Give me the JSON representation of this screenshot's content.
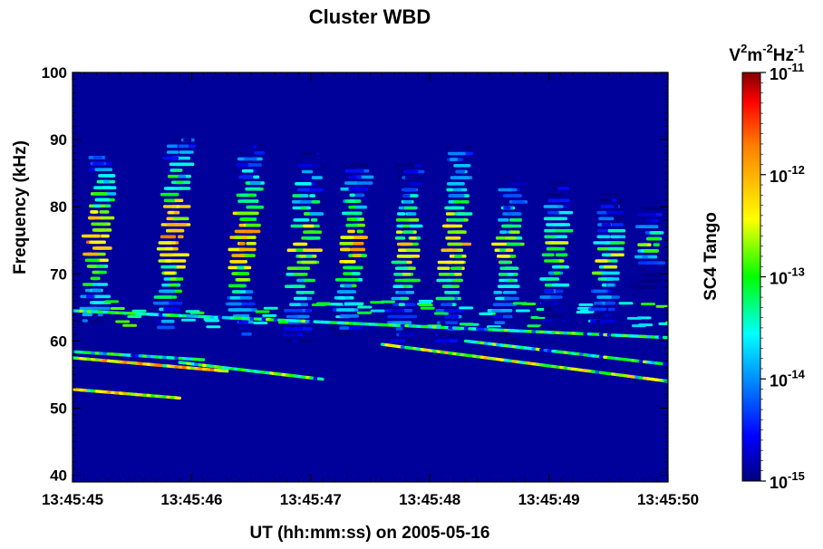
{
  "chart_data": {
    "type": "heatmap",
    "title": "Cluster WBD",
    "xlabel": "UT (hh:mm:ss) on 2005-05-16",
    "ylabel": "Frequency (kHz)",
    "side_label": "SC4 Tango",
    "x_ticks": [
      "13:45:45",
      "13:45:46",
      "13:45:47",
      "13:45:48",
      "13:45:49",
      "13:45:50"
    ],
    "x_range_seconds": [
      45,
      50
    ],
    "y_ticks": [
      40,
      50,
      60,
      70,
      80,
      90,
      100
    ],
    "ylim": [
      39,
      100
    ],
    "colorbar": {
      "unit_base": "V",
      "unit_exp1": "2",
      "unit_mid": "m",
      "unit_exp2": "-2",
      "unit_end": "Hz",
      "unit_exp3": "-1",
      "scale": "log",
      "range_exponents": [
        -15,
        -11
      ],
      "tick_exponents": [
        "-11",
        "-12",
        "-13",
        "-14",
        "-15"
      ],
      "tick_base": "10",
      "colormap": [
        "#00007f",
        "#0000ff",
        "#00ffff",
        "#00ff00",
        "#ffff00",
        "#ff7f00",
        "#ff0000",
        "#7f0000"
      ]
    },
    "background_level_exponent": -15,
    "emissions": [
      {
        "t_center": 45.22,
        "f_low": 63,
        "f_high": 88,
        "log_level": -11.4
      },
      {
        "t_center": 45.85,
        "f_low": 62,
        "f_high": 90,
        "log_level": -11.3
      },
      {
        "t_center": 46.45,
        "f_low": 61,
        "f_high": 89,
        "log_level": -11.5
      },
      {
        "t_center": 46.95,
        "f_low": 60,
        "f_high": 88,
        "log_level": -11.8
      },
      {
        "t_center": 47.35,
        "f_low": 61,
        "f_high": 87,
        "log_level": -11.7
      },
      {
        "t_center": 47.8,
        "f_low": 60,
        "f_high": 87,
        "log_level": -11.8
      },
      {
        "t_center": 48.2,
        "f_low": 60,
        "f_high": 89,
        "log_level": -11.6
      },
      {
        "t_center": 48.65,
        "f_low": 60,
        "f_high": 85,
        "log_level": -11.9
      },
      {
        "t_center": 49.05,
        "f_low": 62,
        "f_high": 84,
        "log_level": -12.1
      },
      {
        "t_center": 49.5,
        "f_low": 62,
        "f_high": 82,
        "log_level": -12.2
      },
      {
        "t_center": 49.85,
        "f_low": 68,
        "f_high": 80,
        "log_level": -12.4
      }
    ],
    "tones": [
      {
        "t_start": 45.0,
        "t_end": 46.3,
        "f_start": 57.5,
        "f_end": 55.5,
        "log_level": -11.6
      },
      {
        "t_start": 45.0,
        "t_end": 45.9,
        "f_start": 52.8,
        "f_end": 51.5,
        "log_level": -11.8
      },
      {
        "t_start": 45.9,
        "t_end": 47.1,
        "f_start": 56.8,
        "f_end": 54.3,
        "log_level": -12.4
      },
      {
        "t_start": 45.0,
        "t_end": 46.1,
        "f_start": 58.4,
        "f_end": 57.2,
        "log_level": -12.8
      },
      {
        "t_start": 47.6,
        "t_end": 50.0,
        "f_start": 59.5,
        "f_end": 54.0,
        "log_level": -12.0
      },
      {
        "t_start": 48.3,
        "t_end": 50.0,
        "f_start": 60.0,
        "f_end": 56.5,
        "log_level": -12.5
      },
      {
        "t_start": 45.0,
        "t_end": 50.0,
        "f_start": 64.5,
        "f_end": 60.5,
        "log_level": -12.6
      }
    ]
  }
}
